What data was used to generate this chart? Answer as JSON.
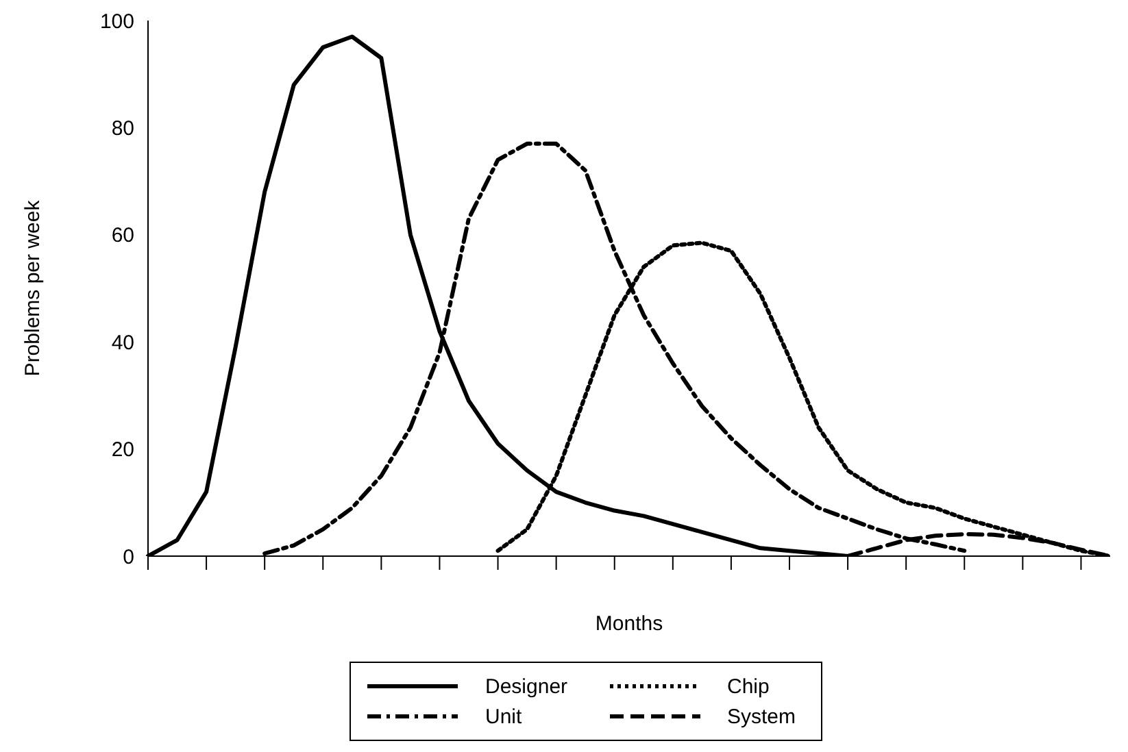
{
  "chart_data": {
    "type": "line",
    "xlabel": "Months",
    "ylabel": "Problems per week",
    "categories": [
      null,
      null,
      null,
      null,
      null,
      null,
      null,
      null,
      null,
      null,
      null,
      null,
      null,
      null,
      null,
      null,
      null,
      null,
      null,
      null,
      null,
      null,
      null,
      null,
      null,
      null,
      null,
      null,
      null,
      null,
      null,
      null,
      null,
      null
    ],
    "ylim": [
      0,
      100
    ],
    "yticks": [
      0,
      20,
      40,
      60,
      80,
      100
    ],
    "grid": false,
    "legend": "bottom",
    "marker": "none",
    "series": [
      {
        "name": "Designer",
        "color": "#000000",
        "line_style": "solid",
        "values": [
          0,
          3,
          12,
          39,
          68,
          88,
          95,
          97,
          93,
          60,
          42,
          29,
          21,
          16,
          12,
          10,
          8.5,
          7.5,
          6,
          4.5,
          3,
          1.5,
          1,
          0.5,
          0,
          null,
          null,
          null,
          null,
          null,
          null,
          null,
          null,
          null
        ]
      },
      {
        "name": "Unit",
        "color": "#000000",
        "line_style": "dashdot",
        "values": [
          null,
          null,
          null,
          null,
          0.5,
          2,
          5,
          9,
          15,
          24,
          38,
          63,
          74,
          77,
          77,
          72,
          57,
          45,
          36,
          28,
          22,
          17,
          12.5,
          9,
          7,
          5,
          3.3,
          2.2,
          1,
          null,
          null,
          null,
          null,
          null
        ]
      },
      {
        "name": "Chip",
        "color": "#000000",
        "line_style": "dotted",
        "values": [
          null,
          null,
          null,
          null,
          null,
          null,
          null,
          null,
          null,
          null,
          null,
          null,
          1,
          5,
          15,
          30,
          45,
          54,
          58,
          58.5,
          57,
          49,
          37,
          24,
          16,
          12.5,
          10,
          9,
          7,
          5.5,
          4,
          2.5,
          1,
          0
        ]
      },
      {
        "name": "System",
        "color": "#000000",
        "line_style": "dashed",
        "values": [
          null,
          null,
          null,
          null,
          null,
          null,
          null,
          null,
          null,
          null,
          null,
          null,
          null,
          null,
          null,
          null,
          null,
          null,
          null,
          null,
          null,
          null,
          null,
          null,
          0,
          1.5,
          3,
          3.8,
          4.1,
          4,
          3.4,
          2.5,
          1.2,
          0
        ]
      }
    ]
  }
}
